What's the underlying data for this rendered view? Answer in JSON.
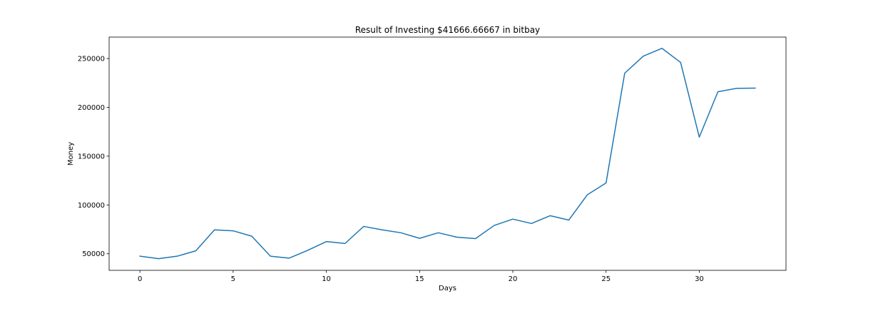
{
  "chart_data": {
    "type": "line",
    "title": "Result of Investing $41666.66667 in bitbay",
    "xlabel": "Days",
    "ylabel": "Money",
    "xlim": [
      -1.65,
      34.65
    ],
    "ylim": [
      33000,
      272000
    ],
    "xticks": [
      0,
      5,
      10,
      15,
      20,
      25,
      30
    ],
    "yticks": [
      50000,
      100000,
      150000,
      200000,
      250000
    ],
    "grid": false,
    "line_color": "#1f77b4",
    "series": [
      {
        "x": [
          0,
          1,
          2,
          3,
          4,
          5,
          6,
          7,
          8,
          9,
          10,
          11,
          12,
          13,
          14,
          15,
          16,
          17,
          18,
          19,
          20,
          21,
          22,
          23,
          24,
          25,
          26,
          27,
          28,
          29,
          30,
          31,
          32,
          33
        ],
        "y": [
          47500,
          45000,
          47500,
          53000,
          74500,
          73500,
          68000,
          47500,
          45500,
          53500,
          62500,
          60500,
          78000,
          74500,
          71500,
          65800,
          71500,
          67000,
          65500,
          79000,
          85500,
          81000,
          89000,
          84500,
          110500,
          122500,
          235000,
          252500,
          260500,
          246000,
          169500,
          216000,
          219500,
          219700
        ]
      }
    ]
  }
}
